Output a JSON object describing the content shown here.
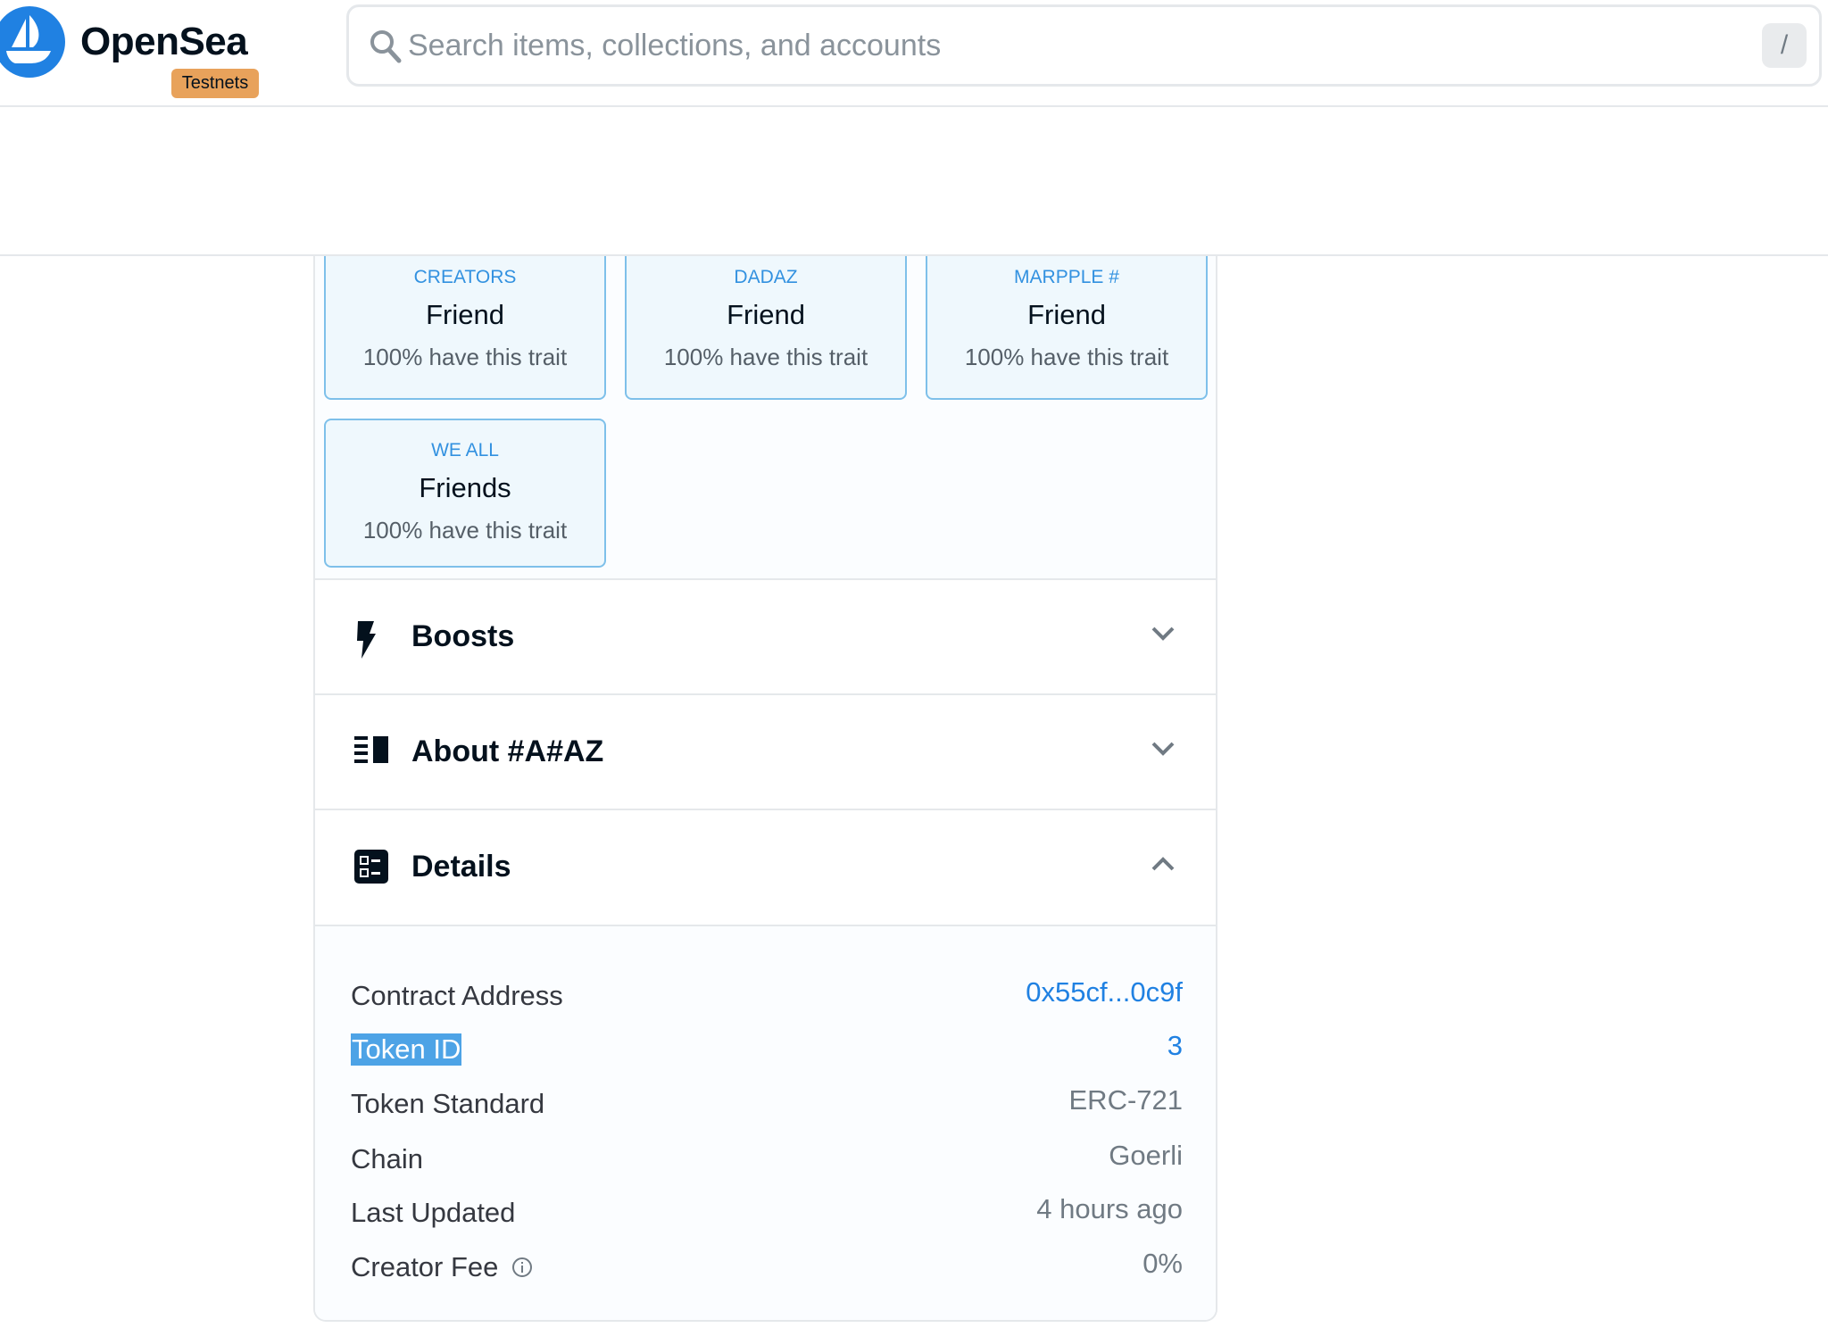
{
  "header": {
    "brand": "OpenSea",
    "badge": "Testnets",
    "search_placeholder": "Search items, collections, and accounts",
    "shortcut": "/"
  },
  "traits": [
    {
      "type": "Creators",
      "value": "Friend",
      "rarity": "100% have this trait"
    },
    {
      "type": "Dadaz",
      "value": "Friend",
      "rarity": "100% have this trait"
    },
    {
      "type": "Marpple #",
      "value": "Friend",
      "rarity": "100% have this trait"
    },
    {
      "type": "We All",
      "value": "Friends",
      "rarity": "100% have this trait"
    }
  ],
  "sections": [
    {
      "label": "Boosts",
      "icon": "lightning-icon",
      "expanded": false
    },
    {
      "label": "About #A#AZ",
      "icon": "list-icon",
      "expanded": false
    },
    {
      "label": "Details",
      "icon": "details-icon",
      "expanded": true
    }
  ],
  "details": [
    {
      "key": "Contract Address",
      "value": "0x55cf...0c9f"
    },
    {
      "key": "Token ID",
      "value": "3"
    },
    {
      "key": "Token Standard",
      "value": "ERC-721"
    },
    {
      "key": "Chain",
      "value": "Goerli"
    },
    {
      "key": "Last Updated",
      "value": "4 hours ago"
    },
    {
      "key": "Creator Fee",
      "value": "0%"
    }
  ],
  "colors": {
    "accent": "#2081e2",
    "trait_border": "#7ec0ea",
    "trait_bg": "#eff8fd",
    "badge": "#e8a25b",
    "selection": "#4da3e6"
  }
}
